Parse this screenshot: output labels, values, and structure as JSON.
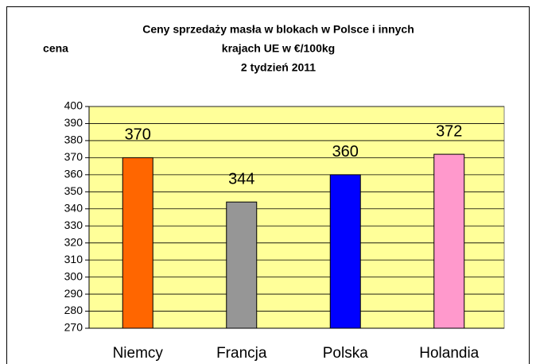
{
  "chart_data": {
    "type": "bar",
    "title": [
      "Ceny sprzedaży masła w blokach w Polsce i  innych",
      "krajach UE w €/100kg",
      "2 tydzień 2011"
    ],
    "y_label": "cena",
    "categories": [
      "Niemcy",
      "Francja",
      "Polska",
      "Holandia"
    ],
    "values": [
      370,
      344,
      360,
      372
    ],
    "colors": [
      "#ff6600",
      "#969696",
      "#0000ff",
      "#ff99cc"
    ],
    "ylim": [
      270,
      400
    ],
    "yticks": [
      270,
      280,
      290,
      300,
      310,
      320,
      330,
      340,
      350,
      360,
      370,
      380,
      390,
      400
    ],
    "grid": true
  }
}
